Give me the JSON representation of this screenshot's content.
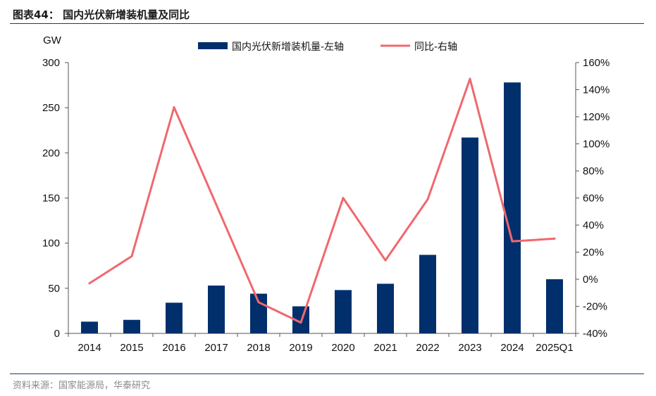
{
  "figure": {
    "title": "图表44：  国内光伏新增装机量及同比",
    "source": "资料来源：国家能源局，华泰研究"
  },
  "colors": {
    "bar": "#002F6C",
    "line": "#F0686E",
    "axis": "#555555",
    "rule": "#1F3A68"
  },
  "chart_data": {
    "type": "bar",
    "title": "国内光伏新增装机量及同比",
    "categories": [
      "2014",
      "2015",
      "2016",
      "2017",
      "2018",
      "2019",
      "2020",
      "2021",
      "2022",
      "2023",
      "2024",
      "2025Q1"
    ],
    "y_unit_label": "GW",
    "ylim_left": [
      0,
      300
    ],
    "yticks_left": [
      "0",
      "50",
      "100",
      "150",
      "200",
      "250",
      "300"
    ],
    "ylim_right": [
      -40,
      160
    ],
    "yticks_right": [
      "-40%",
      "-20%",
      "0%",
      "20%",
      "40%",
      "60%",
      "80%",
      "100%",
      "120%",
      "140%",
      "160%"
    ],
    "grid": false,
    "legend_position": "top",
    "series": [
      {
        "name": "国内光伏新增装机量-左轴",
        "type": "bar",
        "axis": "left",
        "values": [
          13,
          15,
          34,
          53,
          44,
          30,
          48,
          55,
          87,
          217,
          278,
          60
        ]
      },
      {
        "name": "同比-右轴",
        "type": "line",
        "axis": "right",
        "values": [
          -3,
          17,
          127,
          null,
          -17,
          -32,
          60,
          14,
          59,
          148,
          28,
          30
        ]
      }
    ]
  }
}
